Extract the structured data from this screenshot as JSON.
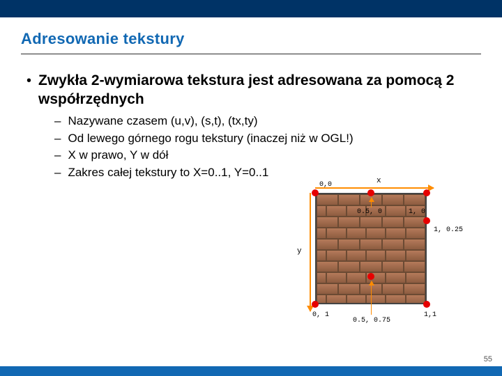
{
  "title_color": "#1168b3",
  "title": "Adresowanie tekstury",
  "main_bullet": "Zwykła 2-wymiarowa tekstura jest adresowana za pomocą 2 współrzędnych",
  "subs": [
    "Nazywane czasem (u,v), (s,t), (tx,ty)",
    "Od lewego górnego rogu tekstury (inaczej niż w OGL!)",
    "X w prawo, Y w dół",
    "Zakres całej tekstury to X=0..1, Y=0..1"
  ],
  "axis_x": "x",
  "axis_y": "y",
  "coords": {
    "tl": "0,0",
    "tm": "0.5, 0",
    "tr": "1, 0",
    "mr": "1, 0.25",
    "bl": "0, 1",
    "bm": "0.5, 0.75",
    "br": "1,1"
  },
  "page": "55"
}
